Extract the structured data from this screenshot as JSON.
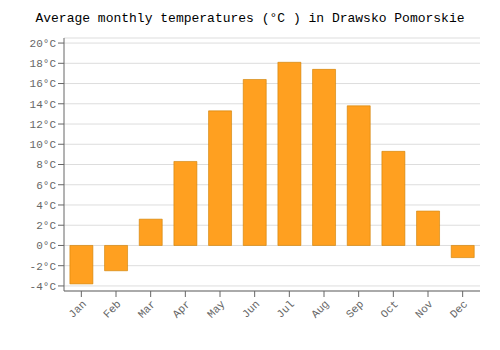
{
  "chart_data": {
    "type": "bar",
    "title": "Average monthly temperatures (°C ) in Drawsko Pomorskie",
    "categories": [
      "Jan",
      "Feb",
      "Mar",
      "Apr",
      "May",
      "Jun",
      "Jul",
      "Aug",
      "Sep",
      "Oct",
      "Nov",
      "Dec"
    ],
    "values": [
      -3.8,
      -2.5,
      2.6,
      8.3,
      13.3,
      16.4,
      18.1,
      17.4,
      13.8,
      9.3,
      3.4,
      -1.2
    ],
    "color": "#FFA020",
    "ylim": [
      -4.5,
      20.5
    ],
    "yticks": [
      {
        "value": -4,
        "label": "-4°C"
      },
      {
        "value": -2,
        "label": "-2°C"
      },
      {
        "value": 0,
        "label": "0°C"
      },
      {
        "value": 2,
        "label": "2°C"
      },
      {
        "value": 4,
        "label": "4°C"
      },
      {
        "value": 6,
        "label": "6°C"
      },
      {
        "value": 8,
        "label": "8°C"
      },
      {
        "value": 10,
        "label": "10°C"
      },
      {
        "value": 12,
        "label": "12°C"
      },
      {
        "value": 14,
        "label": "14°C"
      },
      {
        "value": 16,
        "label": "16°C"
      },
      {
        "value": 18,
        "label": "18°C"
      },
      {
        "value": 20,
        "label": "20°C"
      }
    ],
    "grid": true
  }
}
